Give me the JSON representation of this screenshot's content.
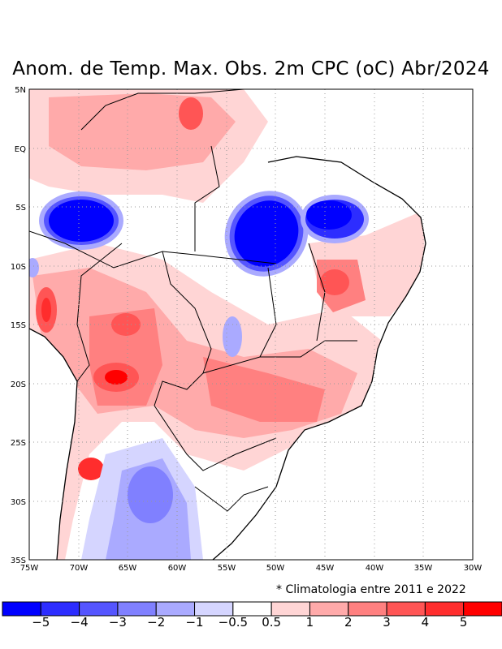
{
  "title": "Anom. de Temp. Max. Obs. 2m CPC (oC) Abr/2024",
  "lat_labels": [
    "5N",
    "EQ",
    "5S",
    "10S",
    "15S",
    "20S",
    "25S",
    "30S",
    "35S"
  ],
  "lon_labels": [
    "75W",
    "70W",
    "65W",
    "60W",
    "55W",
    "50W",
    "45W",
    "40W",
    "35W",
    "30W"
  ],
  "note": "* Climatologia entre 2011 e 2022",
  "colorbar": {
    "colors": [
      "#0000ff",
      "#2d2dff",
      "#5555ff",
      "#8080ff",
      "#aaaaff",
      "#d5d5ff",
      "#ffffff",
      "#ffd5d5",
      "#ffaaaa",
      "#ff8080",
      "#ff5555",
      "#ff2d2d",
      "#ff0000"
    ],
    "labels": [
      "−5",
      "−4",
      "−3",
      "−2",
      "−1",
      "−0.5",
      "0.5",
      "1",
      "2",
      "3",
      "4",
      "5"
    ]
  }
}
